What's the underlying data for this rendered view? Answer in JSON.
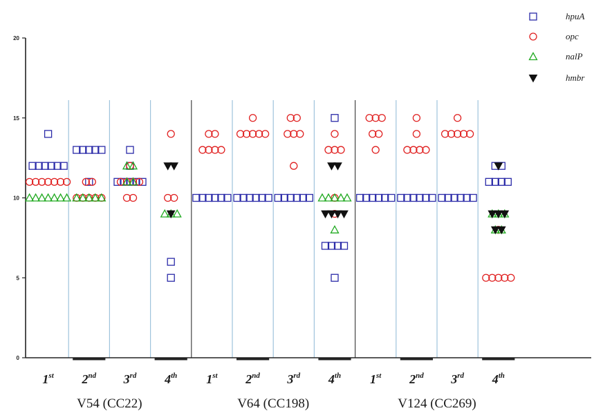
{
  "chart_data": {
    "type": "scatter",
    "title": "",
    "xlabel": "",
    "ylabel": "",
    "ylim": [
      0,
      20
    ],
    "yticks": [
      "0",
      "5",
      "10",
      "15",
      "20"
    ],
    "grid": false,
    "legend_position": "top-right",
    "colors": {
      "hpuA": "#2a2aa8",
      "opc": "#e02020",
      "nalP": "#22aa22",
      "hmbr": "#111111",
      "separator": "#9ec3dc",
      "axis": "#222222"
    },
    "series": [
      {
        "name": "hpuA",
        "marker": "square"
      },
      {
        "name": "opc",
        "marker": "circle"
      },
      {
        "name": "nalP",
        "marker": "triangle"
      },
      {
        "name": "hmbr",
        "marker": "triangle-down"
      }
    ],
    "groups": [
      {
        "label": "V54 (CC22)",
        "lanes": [
          {
            "ordinal": "1",
            "suffix": "st",
            "points": {
              "hpuA": [
                14,
                12,
                12,
                12,
                12,
                12,
                12
              ],
              "opc": [
                11,
                11,
                11,
                11,
                11,
                11,
                11
              ],
              "nalP": [
                10,
                10,
                10,
                10,
                10,
                10,
                10
              ],
              "hmbr": []
            }
          },
          {
            "ordinal": "2",
            "suffix": "nd",
            "points": {
              "hpuA": [
                11,
                13,
                13,
                13,
                13,
                13
              ],
              "opc": [
                10,
                10,
                10,
                10,
                10,
                11,
                11
              ],
              "nalP": [
                10,
                10,
                10,
                10,
                10
              ],
              "hmbr": []
            }
          },
          {
            "ordinal": "3",
            "suffix": "rd",
            "points": {
              "hpuA": [
                12,
                13,
                11,
                11,
                11,
                11,
                11
              ],
              "opc": [
                11,
                11,
                11,
                11,
                10,
                10,
                12
              ],
              "nalP": [
                11,
                11,
                12,
                12
              ],
              "hmbr": []
            }
          },
          {
            "ordinal": "4",
            "suffix": "th",
            "points": {
              "hpuA": [
                5,
                6
              ],
              "opc": [
                14,
                10,
                10
              ],
              "nalP": [
                9,
                9,
                9
              ],
              "hmbr": [
                12,
                12,
                9
              ]
            }
          }
        ]
      },
      {
        "label": "V64 (CC198)",
        "lanes": [
          {
            "ordinal": "1",
            "suffix": "st",
            "points": {
              "hpuA": [
                10,
                10,
                10,
                10,
                10,
                10
              ],
              "opc": [
                14,
                14,
                13,
                13,
                13,
                13
              ],
              "nalP": [],
              "hmbr": []
            }
          },
          {
            "ordinal": "2",
            "suffix": "nd",
            "points": {
              "hpuA": [
                10,
                10,
                10,
                10,
                10,
                10
              ],
              "opc": [
                15,
                14,
                14,
                14,
                14,
                14
              ],
              "nalP": [],
              "hmbr": []
            }
          },
          {
            "ordinal": "3",
            "suffix": "rd",
            "points": {
              "hpuA": [
                10,
                10,
                10,
                10,
                10,
                10
              ],
              "opc": [
                12,
                14,
                14,
                14,
                15,
                15
              ],
              "nalP": [],
              "hmbr": []
            }
          },
          {
            "ordinal": "4",
            "suffix": "th",
            "points": {
              "hpuA": [
                5,
                15,
                7,
                7,
                7,
                7
              ],
              "opc": [
                13,
                13,
                13,
                10,
                9,
                14
              ],
              "nalP": [
                10,
                10,
                10,
                10,
                10,
                8
              ],
              "hmbr": [
                9,
                9,
                9,
                9,
                12,
                12
              ]
            }
          }
        ]
      },
      {
        "label": "V124 (CC269)",
        "lanes": [
          {
            "ordinal": "1",
            "suffix": "st",
            "points": {
              "hpuA": [
                10,
                10,
                10,
                10,
                10,
                10
              ],
              "opc": [
                13,
                14,
                14,
                15,
                15,
                15
              ],
              "nalP": [],
              "hmbr": []
            }
          },
          {
            "ordinal": "2",
            "suffix": "nd",
            "points": {
              "hpuA": [
                10,
                10,
                10,
                10,
                10,
                10
              ],
              "opc": [
                15,
                14,
                13,
                13,
                13,
                13
              ],
              "nalP": [],
              "hmbr": []
            }
          },
          {
            "ordinal": "3",
            "suffix": "rd",
            "points": {
              "hpuA": [
                10,
                10,
                10,
                10,
                10,
                10
              ],
              "opc": [
                15,
                14,
                14,
                14,
                14,
                14
              ],
              "nalP": [],
              "hmbr": []
            }
          },
          {
            "ordinal": "4",
            "suffix": "th",
            "points": {
              "hpuA": [
                12,
                12,
                11,
                11,
                11,
                11
              ],
              "opc": [
                8,
                5,
                5,
                5,
                5,
                5
              ],
              "nalP": [
                8,
                8,
                9,
                9,
                9
              ],
              "hmbr": [
                9,
                9,
                9,
                8,
                8,
                12
              ]
            }
          }
        ]
      }
    ]
  }
}
